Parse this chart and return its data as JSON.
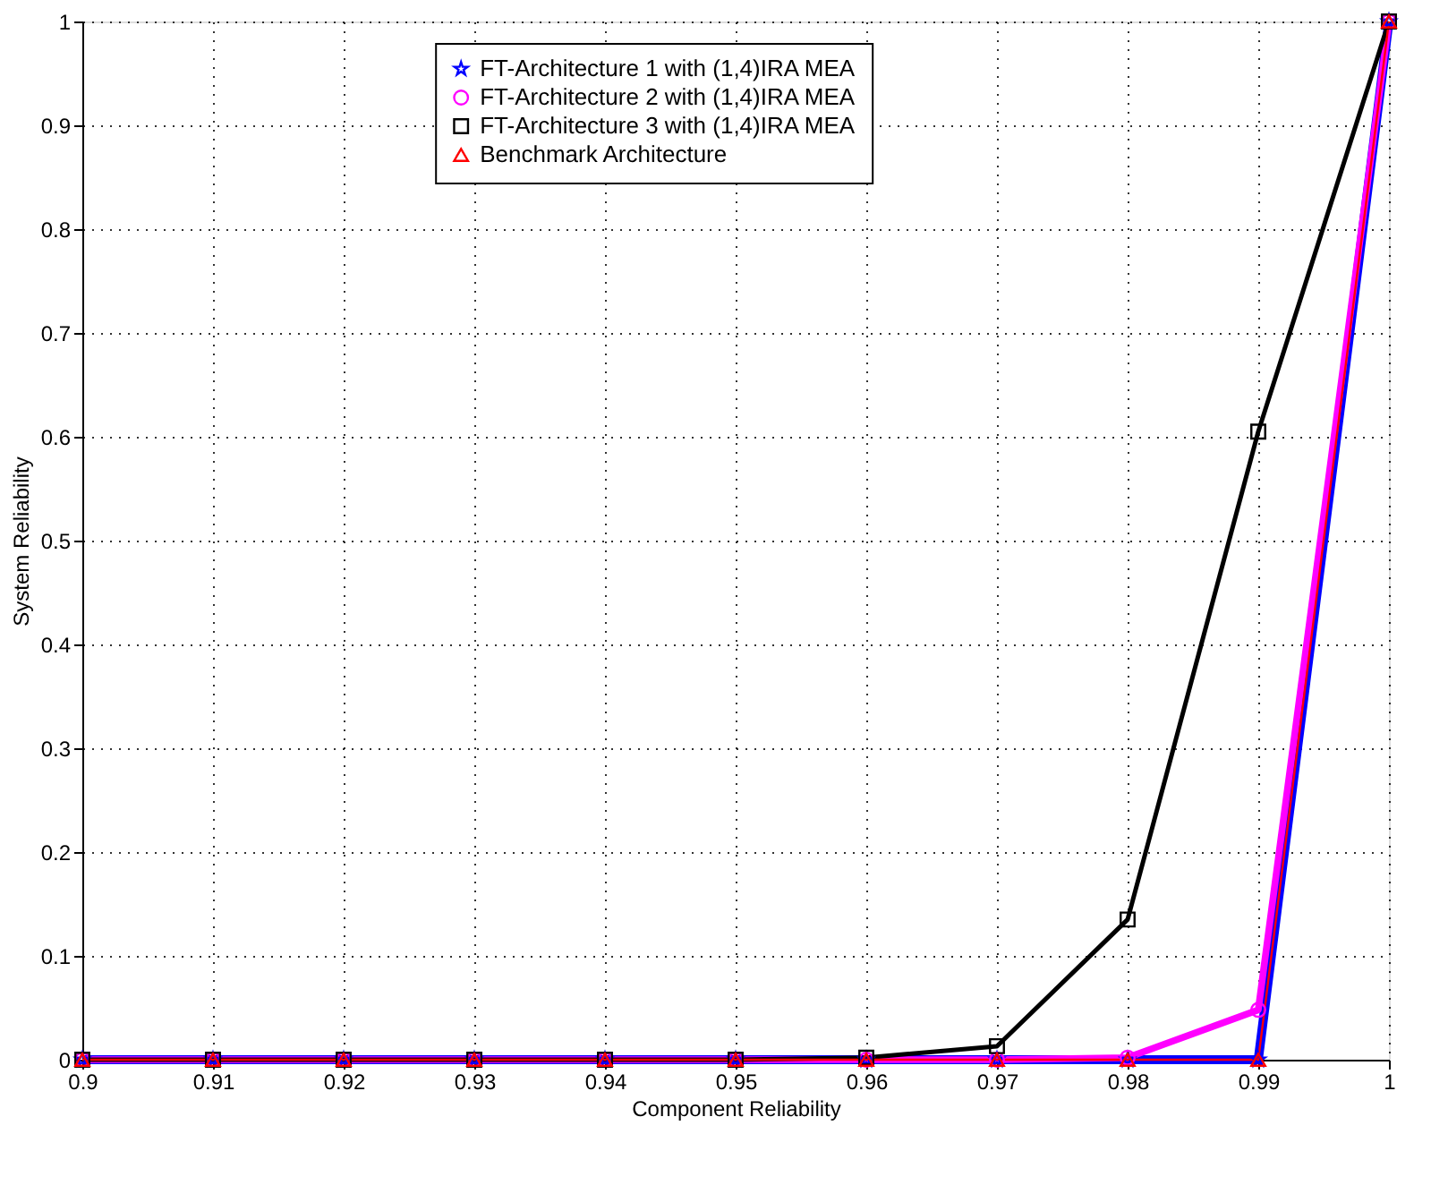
{
  "chart_data": {
    "type": "line",
    "xlabel": "Component Reliability",
    "ylabel": "System Reliability",
    "x": [
      0.9,
      0.91,
      0.92,
      0.93,
      0.94,
      0.95,
      0.96,
      0.97,
      0.98,
      0.99,
      1
    ],
    "series": [
      {
        "name": "FT-Architecture 1 with (1,4)IRA MEA",
        "color": "#0000ff",
        "marker": "star",
        "values": [
          0,
          0,
          0,
          0,
          0,
          0,
          0,
          0,
          0,
          0,
          1
        ]
      },
      {
        "name": "FT-Architecture 2 with (1,4)IRA MEA",
        "color": "#ff00ff",
        "marker": "circle",
        "values": [
          0,
          0,
          0,
          0,
          0,
          0,
          0,
          0,
          0.002,
          0.048,
          1
        ]
      },
      {
        "name": "FT-Architecture 3 with (1,4)IRA MEA",
        "color": "#000000",
        "marker": "square",
        "values": [
          0,
          0,
          0,
          0,
          0,
          0,
          0.002,
          0.013,
          0.135,
          0.605,
          1
        ]
      },
      {
        "name": "Benchmark Architecture",
        "color": "#ff0000",
        "marker": "triangle",
        "values": [
          0,
          0,
          0,
          0,
          0,
          0,
          0,
          0,
          0,
          0,
          1
        ]
      }
    ],
    "xlim": [
      0.9,
      1
    ],
    "ylim": [
      0,
      1
    ],
    "xticks": [
      0.9,
      0.91,
      0.92,
      0.93,
      0.94,
      0.95,
      0.96,
      0.97,
      0.98,
      0.99,
      1
    ],
    "yticks": [
      0,
      0.1,
      0.2,
      0.3,
      0.4,
      0.5,
      0.6,
      0.7,
      0.8,
      0.9,
      1
    ],
    "grid": true,
    "legend": "top",
    "line_style": "solid"
  }
}
